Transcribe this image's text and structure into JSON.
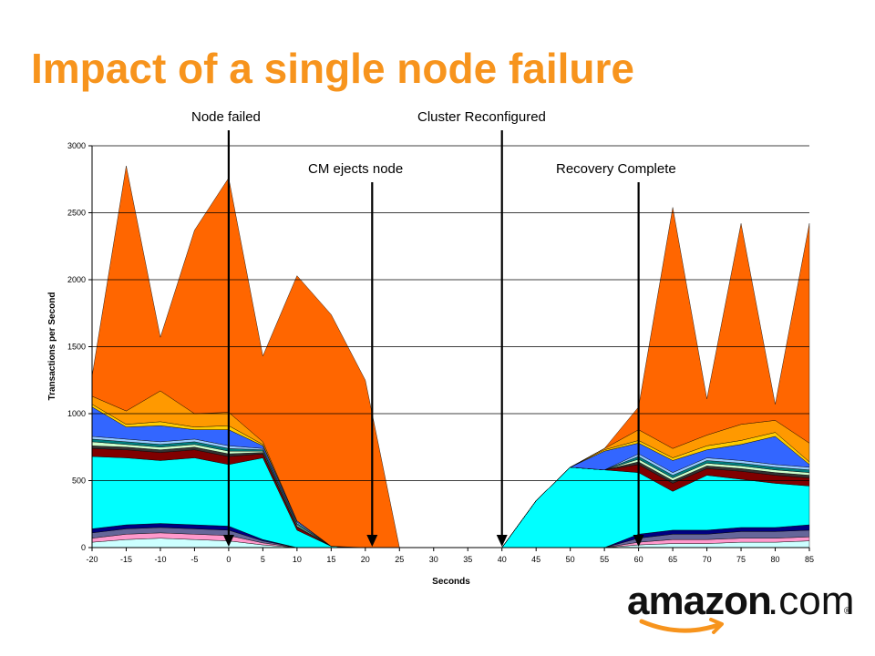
{
  "slide": {
    "title": "Impact of a single node failure"
  },
  "logo": {
    "name": "amazon",
    "suffix": ".com",
    "reg": "®"
  },
  "chart_data": {
    "type": "area",
    "stacked": true,
    "xlabel": "Seconds",
    "ylabel": "Transactions per Second",
    "xlim": [
      -20,
      85
    ],
    "ylim": [
      0,
      3000
    ],
    "x_ticks": [
      -20,
      -15,
      -10,
      -5,
      0,
      5,
      10,
      15,
      20,
      25,
      30,
      35,
      40,
      45,
      50,
      55,
      60,
      65,
      70,
      75,
      80,
      85
    ],
    "y_ticks": [
      0,
      500,
      1000,
      1500,
      2000,
      2500,
      3000
    ],
    "grid": "horizontal",
    "legend": "none",
    "x": [
      -20,
      -15,
      -10,
      -5,
      0,
      5,
      10,
      15,
      20,
      25,
      30,
      35,
      40,
      45,
      50,
      55,
      60,
      65,
      70,
      75,
      80,
      85
    ],
    "series": [
      {
        "color": "#ccffff",
        "values": [
          40,
          60,
          70,
          60,
          50,
          20,
          0,
          0,
          0,
          0,
          0,
          0,
          0,
          0,
          0,
          0,
          20,
          30,
          30,
          40,
          40,
          50
        ]
      },
      {
        "color": "#ff99cc",
        "values": [
          30,
          40,
          40,
          40,
          40,
          15,
          0,
          0,
          0,
          0,
          0,
          0,
          0,
          0,
          0,
          0,
          20,
          30,
          30,
          30,
          30,
          30
        ]
      },
      {
        "color": "#666699",
        "values": [
          40,
          40,
          40,
          40,
          40,
          15,
          0,
          0,
          0,
          0,
          0,
          0,
          0,
          0,
          0,
          0,
          30,
          40,
          40,
          50,
          50,
          50
        ]
      },
      {
        "color": "#000080",
        "values": [
          30,
          30,
          30,
          30,
          30,
          10,
          0,
          0,
          0,
          0,
          0,
          0,
          0,
          0,
          0,
          0,
          30,
          30,
          30,
          30,
          30,
          40
        ]
      },
      {
        "color": "#00ffff",
        "values": [
          540,
          500,
          470,
          500,
          460,
          610,
          130,
          10,
          0,
          0,
          0,
          0,
          0,
          350,
          600,
          580,
          460,
          290,
          410,
          360,
          330,
          290
        ]
      },
      {
        "color": "#800000",
        "values": [
          60,
          60,
          60,
          60,
          60,
          30,
          20,
          0,
          0,
          0,
          0,
          0,
          0,
          0,
          0,
          0,
          60,
          60,
          50,
          60,
          60,
          60
        ]
      },
      {
        "color": "#333333",
        "values": [
          20,
          20,
          20,
          20,
          20,
          10,
          10,
          0,
          0,
          0,
          0,
          0,
          0,
          0,
          0,
          0,
          20,
          20,
          20,
          20,
          20,
          20
        ]
      },
      {
        "color": "#ccffcc",
        "values": [
          30,
          20,
          20,
          20,
          20,
          10,
          10,
          0,
          0,
          0,
          0,
          0,
          0,
          0,
          0,
          0,
          20,
          20,
          20,
          20,
          20,
          20
        ]
      },
      {
        "color": "#008080",
        "values": [
          20,
          20,
          20,
          20,
          20,
          10,
          10,
          0,
          0,
          0,
          0,
          0,
          0,
          0,
          0,
          0,
          20,
          20,
          20,
          20,
          20,
          20
        ]
      },
      {
        "color": "#99ccff",
        "values": [
          20,
          20,
          20,
          20,
          20,
          10,
          10,
          0,
          0,
          0,
          0,
          0,
          0,
          0,
          0,
          0,
          20,
          20,
          20,
          20,
          20,
          20
        ]
      },
      {
        "color": "#3366ff",
        "values": [
          220,
          90,
          120,
          70,
          120,
          20,
          10,
          0,
          0,
          0,
          0,
          0,
          0,
          0,
          0,
          140,
          80,
          90,
          60,
          120,
          210,
          20
        ]
      },
      {
        "color": "#ffcc00",
        "values": [
          20,
          20,
          30,
          20,
          30,
          10,
          0,
          0,
          0,
          0,
          0,
          0,
          0,
          0,
          0,
          10,
          20,
          20,
          30,
          30,
          30,
          20
        ]
      },
      {
        "color": "#ff9900",
        "values": [
          60,
          100,
          230,
          100,
          100,
          20,
          0,
          0,
          0,
          0,
          0,
          0,
          0,
          0,
          0,
          10,
          80,
          70,
          80,
          120,
          90,
          140
        ]
      },
      {
        "color": "#ff6600",
        "values": [
          150,
          1830,
          400,
          1370,
          1750,
          640,
          1830,
          1730,
          1250,
          0,
          0,
          0,
          0,
          0,
          0,
          0,
          170,
          1800,
          270,
          1500,
          120,
          1640
        ]
      }
    ],
    "annotations": [
      {
        "label": "Node failed",
        "x": 0
      },
      {
        "label": "CM ejects node",
        "x": 21
      },
      {
        "label": "Cluster Reconfigured",
        "x": 40
      },
      {
        "label": "Recovery Complete",
        "x": 60
      }
    ]
  }
}
